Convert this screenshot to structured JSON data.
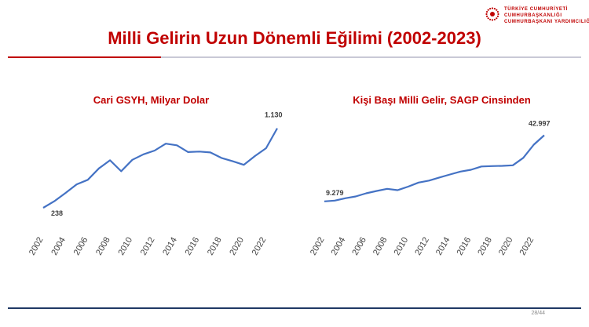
{
  "title": "Milli Gelirin Uzun Dönemli Eğilimi (2002-2023)",
  "logo": {
    "line1": "TÜRKİYE CUMHURİYETİ",
    "line2": "CUMHURBAŞKANLIĞI",
    "line3": "CUMHURBAŞKANI YARDIMCILIĞI"
  },
  "page_number": "28/44",
  "colors": {
    "title": "#c00000",
    "line": "#4472c4",
    "rule": "#1f3864"
  },
  "chart_data": [
    {
      "type": "line",
      "title": "Cari GSYH, Milyar Dolar",
      "x": [
        2002,
        2003,
        2004,
        2005,
        2006,
        2007,
        2008,
        2009,
        2010,
        2011,
        2012,
        2013,
        2014,
        2015,
        2016,
        2017,
        2018,
        2019,
        2020,
        2021,
        2022,
        2023
      ],
      "values": [
        238,
        312,
        404,
        501,
        552,
        681,
        771,
        648,
        777,
        838,
        880,
        958,
        939,
        864,
        869,
        859,
        798,
        761,
        720,
        819,
        907,
        1130
      ],
      "tick_labels": [
        "2002",
        "2004",
        "2006",
        "2008",
        "2010",
        "2012",
        "2014",
        "2016",
        "2018",
        "2020",
        "2022"
      ],
      "data_labels": [
        {
          "x": 2002,
          "text": "238"
        },
        {
          "x": 2023,
          "text": "1.130"
        }
      ],
      "ylim": [
        150,
        1250
      ],
      "grid": false
    },
    {
      "type": "line",
      "title": "Kişi Başı Milli Gelir, SAGP Cinsinden",
      "x": [
        2002,
        2003,
        2004,
        2005,
        2006,
        2007,
        2008,
        2009,
        2010,
        2011,
        2012,
        2013,
        2014,
        2015,
        2016,
        2017,
        2018,
        2019,
        2020,
        2021,
        2022,
        2023
      ],
      "values": [
        9279,
        9700,
        10900,
        11800,
        13400,
        14600,
        15700,
        15000,
        16800,
        18900,
        19900,
        21500,
        23000,
        24500,
        25400,
        27100,
        27300,
        27400,
        27700,
        31500,
        38200,
        42997
      ],
      "tick_labels": [
        "2002",
        "2004",
        "2006",
        "2008",
        "2010",
        "2012",
        "2014",
        "2016",
        "2018",
        "2020",
        "2022"
      ],
      "data_labels": [
        {
          "x": 2002,
          "text": "9.279"
        },
        {
          "x": 2023,
          "text": "42.997"
        }
      ],
      "ylim": [
        0,
        50000
      ],
      "grid": false
    }
  ]
}
